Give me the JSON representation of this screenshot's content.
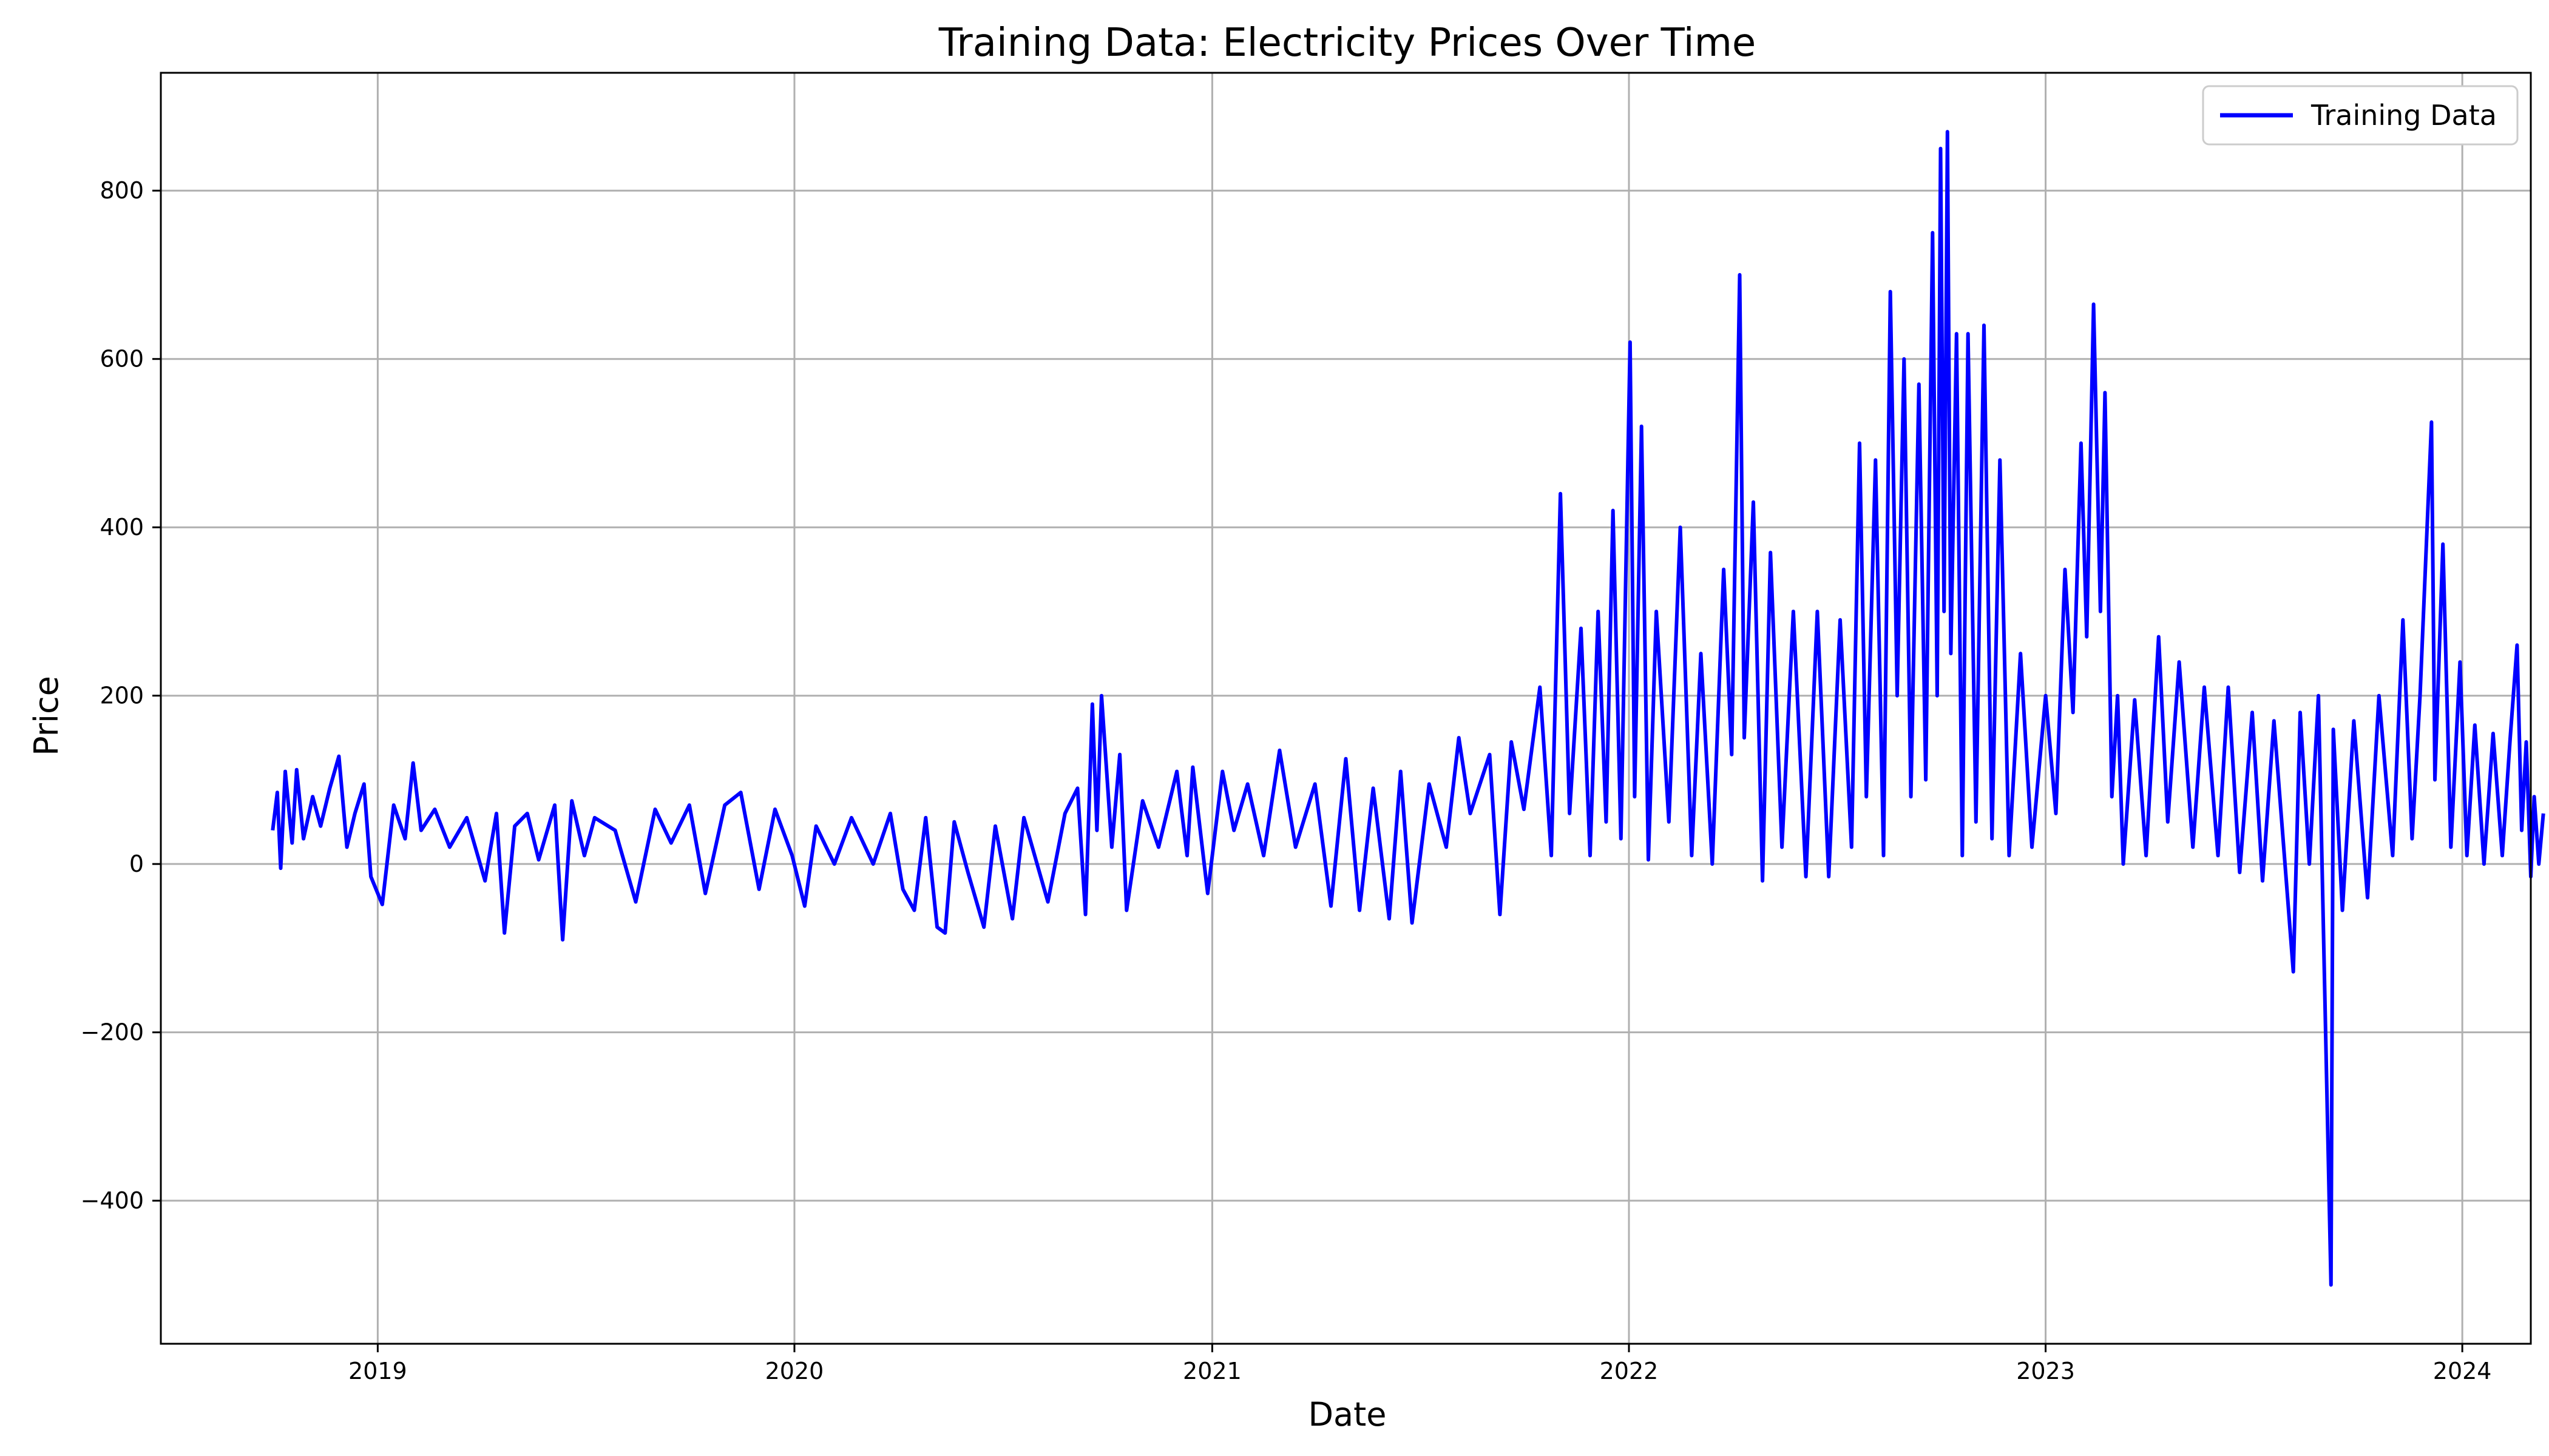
{
  "chart_data": {
    "type": "line",
    "title": "Training Data: Electricity Prices Over Time",
    "xlabel": "Date",
    "ylabel": "Price",
    "xlim": [
      "2018-06-25",
      "2024-03-01"
    ],
    "ylim": [
      -570,
      940
    ],
    "x_ticks": [
      "2019",
      "2020",
      "2021",
      "2022",
      "2023",
      "2024"
    ],
    "y_ticks": [
      -400,
      -200,
      0,
      200,
      400,
      600,
      800
    ],
    "y_tick_labels": [
      "−400",
      "−200",
      "0",
      "200",
      "400",
      "600",
      "800"
    ],
    "grid": true,
    "legend_position": "top-right",
    "series": [
      {
        "name": "Training Data",
        "color": "#0000ff",
        "points": [
          [
            "2018-10-01",
            40
          ],
          [
            "2018-10-05",
            85
          ],
          [
            "2018-10-08",
            -5
          ],
          [
            "2018-10-12",
            110
          ],
          [
            "2018-10-18",
            25
          ],
          [
            "2018-10-22",
            112
          ],
          [
            "2018-10-28",
            30
          ],
          [
            "2018-11-05",
            80
          ],
          [
            "2018-11-12",
            45
          ],
          [
            "2018-11-20",
            90
          ],
          [
            "2018-11-28",
            128
          ],
          [
            "2018-12-05",
            20
          ],
          [
            "2018-12-12",
            60
          ],
          [
            "2018-12-20",
            95
          ],
          [
            "2018-12-26",
            -15
          ],
          [
            "2019-01-05",
            -48
          ],
          [
            "2019-01-15",
            70
          ],
          [
            "2019-01-25",
            30
          ],
          [
            "2019-02-01",
            120
          ],
          [
            "2019-02-08",
            40
          ],
          [
            "2019-02-20",
            65
          ],
          [
            "2019-03-05",
            20
          ],
          [
            "2019-03-20",
            55
          ],
          [
            "2019-04-05",
            -20
          ],
          [
            "2019-04-15",
            60
          ],
          [
            "2019-04-22",
            -82
          ],
          [
            "2019-05-01",
            45
          ],
          [
            "2019-05-12",
            60
          ],
          [
            "2019-05-22",
            5
          ],
          [
            "2019-06-05",
            70
          ],
          [
            "2019-06-12",
            -90
          ],
          [
            "2019-06-20",
            75
          ],
          [
            "2019-07-01",
            10
          ],
          [
            "2019-07-10",
            55
          ],
          [
            "2019-07-28",
            40
          ],
          [
            "2019-08-15",
            -45
          ],
          [
            "2019-09-01",
            65
          ],
          [
            "2019-09-15",
            25
          ],
          [
            "2019-10-01",
            70
          ],
          [
            "2019-10-15",
            -35
          ],
          [
            "2019-11-01",
            70
          ],
          [
            "2019-11-15",
            85
          ],
          [
            "2019-12-01",
            -30
          ],
          [
            "2019-12-15",
            65
          ],
          [
            "2019-12-30",
            10
          ],
          [
            "2020-01-10",
            -50
          ],
          [
            "2020-01-20",
            45
          ],
          [
            "2020-02-05",
            0
          ],
          [
            "2020-02-20",
            55
          ],
          [
            "2020-03-10",
            0
          ],
          [
            "2020-03-25",
            60
          ],
          [
            "2020-04-05",
            -30
          ],
          [
            "2020-04-15",
            -55
          ],
          [
            "2020-04-25",
            55
          ],
          [
            "2020-05-05",
            -75
          ],
          [
            "2020-05-12",
            -82
          ],
          [
            "2020-05-20",
            50
          ],
          [
            "2020-06-01",
            -10
          ],
          [
            "2020-06-15",
            -75
          ],
          [
            "2020-06-25",
            45
          ],
          [
            "2020-07-10",
            -65
          ],
          [
            "2020-07-20",
            55
          ],
          [
            "2020-08-10",
            -45
          ],
          [
            "2020-08-25",
            60
          ],
          [
            "2020-09-05",
            90
          ],
          [
            "2020-09-12",
            -60
          ],
          [
            "2020-09-18",
            190
          ],
          [
            "2020-09-22",
            40
          ],
          [
            "2020-09-26",
            200
          ],
          [
            "2020-10-05",
            20
          ],
          [
            "2020-10-12",
            130
          ],
          [
            "2020-10-18",
            -55
          ],
          [
            "2020-11-01",
            75
          ],
          [
            "2020-11-15",
            20
          ],
          [
            "2020-12-01",
            110
          ],
          [
            "2020-12-10",
            10
          ],
          [
            "2020-12-15",
            115
          ],
          [
            "2020-12-28",
            -35
          ],
          [
            "2021-01-10",
            110
          ],
          [
            "2021-01-20",
            40
          ],
          [
            "2021-02-01",
            95
          ],
          [
            "2021-02-15",
            10
          ],
          [
            "2021-03-01",
            135
          ],
          [
            "2021-03-15",
            20
          ],
          [
            "2021-04-01",
            95
          ],
          [
            "2021-04-15",
            -50
          ],
          [
            "2021-04-28",
            125
          ],
          [
            "2021-05-10",
            -55
          ],
          [
            "2021-05-22",
            90
          ],
          [
            "2021-06-05",
            -65
          ],
          [
            "2021-06-15",
            110
          ],
          [
            "2021-06-25",
            -70
          ],
          [
            "2021-07-10",
            95
          ],
          [
            "2021-07-25",
            20
          ],
          [
            "2021-08-05",
            150
          ],
          [
            "2021-08-15",
            60
          ],
          [
            "2021-09-01",
            130
          ],
          [
            "2021-09-10",
            -60
          ],
          [
            "2021-09-20",
            145
          ],
          [
            "2021-10-01",
            65
          ],
          [
            "2021-10-15",
            210
          ],
          [
            "2021-10-25",
            10
          ],
          [
            "2021-11-02",
            440
          ],
          [
            "2021-11-10",
            60
          ],
          [
            "2021-11-20",
            280
          ],
          [
            "2021-11-28",
            10
          ],
          [
            "2021-12-05",
            300
          ],
          [
            "2021-12-12",
            50
          ],
          [
            "2021-12-18",
            420
          ],
          [
            "2021-12-25",
            30
          ],
          [
            "2022-01-02",
            620
          ],
          [
            "2022-01-06",
            80
          ],
          [
            "2022-01-12",
            520
          ],
          [
            "2022-01-18",
            5
          ],
          [
            "2022-01-25",
            300
          ],
          [
            "2022-02-05",
            50
          ],
          [
            "2022-02-15",
            400
          ],
          [
            "2022-02-25",
            10
          ],
          [
            "2022-03-05",
            250
          ],
          [
            "2022-03-15",
            0
          ],
          [
            "2022-03-25",
            350
          ],
          [
            "2022-04-01",
            130
          ],
          [
            "2022-04-08",
            700
          ],
          [
            "2022-04-12",
            150
          ],
          [
            "2022-04-20",
            430
          ],
          [
            "2022-04-28",
            -20
          ],
          [
            "2022-05-05",
            370
          ],
          [
            "2022-05-15",
            20
          ],
          [
            "2022-05-25",
            300
          ],
          [
            "2022-06-05",
            -15
          ],
          [
            "2022-06-15",
            300
          ],
          [
            "2022-06-25",
            -15
          ],
          [
            "2022-07-05",
            290
          ],
          [
            "2022-07-15",
            20
          ],
          [
            "2022-07-22",
            500
          ],
          [
            "2022-07-28",
            80
          ],
          [
            "2022-08-05",
            480
          ],
          [
            "2022-08-12",
            10
          ],
          [
            "2022-08-18",
            680
          ],
          [
            "2022-08-24",
            200
          ],
          [
            "2022-08-30",
            600
          ],
          [
            "2022-09-05",
            80
          ],
          [
            "2022-09-12",
            570
          ],
          [
            "2022-09-18",
            100
          ],
          [
            "2022-09-24",
            750
          ],
          [
            "2022-09-28",
            200
          ],
          [
            "2022-10-01",
            850
          ],
          [
            "2022-10-04",
            300
          ],
          [
            "2022-10-07",
            870
          ],
          [
            "2022-10-10",
            250
          ],
          [
            "2022-10-15",
            630
          ],
          [
            "2022-10-20",
            10
          ],
          [
            "2022-10-25",
            630
          ],
          [
            "2022-11-01",
            50
          ],
          [
            "2022-11-08",
            640
          ],
          [
            "2022-11-15",
            30
          ],
          [
            "2022-11-22",
            480
          ],
          [
            "2022-11-30",
            10
          ],
          [
            "2022-12-10",
            250
          ],
          [
            "2022-12-20",
            20
          ],
          [
            "2023-01-01",
            200
          ],
          [
            "2023-01-10",
            60
          ],
          [
            "2023-01-18",
            350
          ],
          [
            "2023-01-25",
            180
          ],
          [
            "2023-02-01",
            500
          ],
          [
            "2023-02-06",
            270
          ],
          [
            "2023-02-12",
            665
          ],
          [
            "2023-02-18",
            300
          ],
          [
            "2023-02-22",
            560
          ],
          [
            "2023-02-28",
            80
          ],
          [
            "2023-03-05",
            200
          ],
          [
            "2023-03-10",
            0
          ],
          [
            "2023-03-20",
            195
          ],
          [
            "2023-03-30",
            10
          ],
          [
            "2023-04-10",
            270
          ],
          [
            "2023-04-18",
            50
          ],
          [
            "2023-04-28",
            240
          ],
          [
            "2023-05-10",
            20
          ],
          [
            "2023-05-20",
            210
          ],
          [
            "2023-06-01",
            10
          ],
          [
            "2023-06-10",
            210
          ],
          [
            "2023-06-20",
            -10
          ],
          [
            "2023-07-01",
            180
          ],
          [
            "2023-07-10",
            -20
          ],
          [
            "2023-07-20",
            170
          ],
          [
            "2023-08-01",
            -40
          ],
          [
            "2023-08-06",
            -128
          ],
          [
            "2023-08-12",
            180
          ],
          [
            "2023-08-20",
            0
          ],
          [
            "2023-08-28",
            200
          ],
          [
            "2023-09-08",
            -500
          ],
          [
            "2023-09-10",
            160
          ],
          [
            "2023-09-18",
            -55
          ],
          [
            "2023-09-28",
            170
          ],
          [
            "2023-10-10",
            -40
          ],
          [
            "2023-10-20",
            200
          ],
          [
            "2023-11-01",
            10
          ],
          [
            "2023-11-10",
            290
          ],
          [
            "2023-11-18",
            30
          ],
          [
            "2023-11-25",
            200
          ],
          [
            "2023-12-05",
            525
          ],
          [
            "2023-12-08",
            100
          ],
          [
            "2023-12-15",
            380
          ],
          [
            "2023-12-22",
            20
          ],
          [
            "2023-12-30",
            240
          ],
          [
            "2024-01-05",
            10
          ],
          [
            "2024-01-12",
            165
          ],
          [
            "2024-01-20",
            0
          ],
          [
            "2024-01-28",
            155
          ],
          [
            "2024-02-05",
            10
          ],
          [
            "2024-02-12",
            150
          ],
          [
            "2024-02-18",
            260
          ],
          [
            "2024-02-22",
            40
          ],
          [
            "2024-02-26",
            145
          ],
          [
            "2024-03-01",
            -15
          ],
          [
            "2024-03-04",
            80
          ],
          [
            "2024-03-08",
            0
          ],
          [
            "2024-03-12",
            60
          ]
        ]
      }
    ]
  }
}
